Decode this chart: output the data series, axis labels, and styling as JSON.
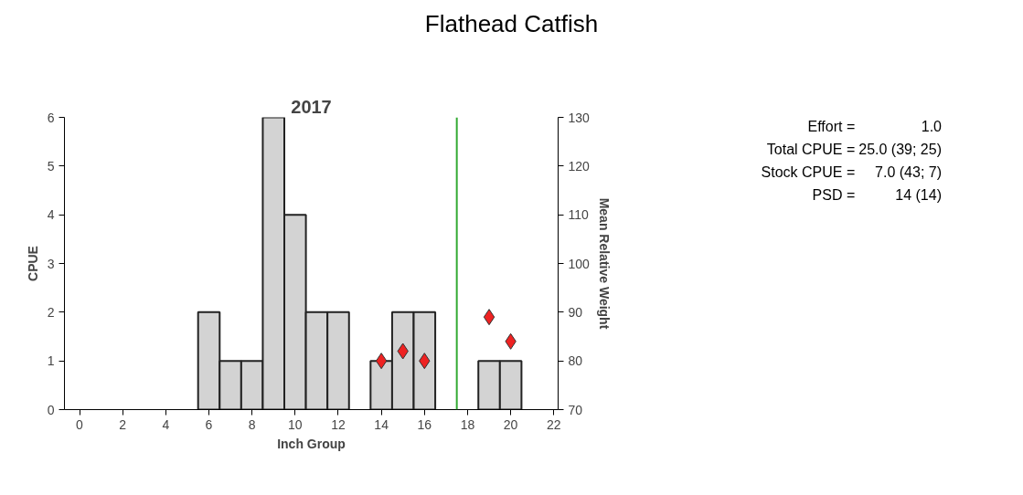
{
  "chart_data": {
    "type": "bar",
    "title": "Flathead Catfish",
    "subtitle": "2017",
    "xlabel": "Inch Group",
    "ylabel": "CPUE",
    "y2label": "Mean Relative Weight",
    "x": [
      6,
      7,
      8,
      9,
      10,
      11,
      12,
      14,
      15,
      16,
      19,
      20
    ],
    "series": [
      {
        "color": "#d3d3d3",
        "values": [
          2,
          1,
          1,
          6,
          4,
          2,
          2,
          1,
          2,
          2,
          1,
          1
        ]
      },
      {
        "type": "scatter",
        "axis": "y2",
        "color": "#ee2222",
        "marker": "diamond",
        "x": [
          14,
          15,
          16,
          19,
          20
        ],
        "values": [
          80,
          82,
          80,
          89,
          84
        ]
      }
    ],
    "xlim": [
      -0.7,
      22.2
    ],
    "xticks": [
      0,
      2,
      4,
      6,
      8,
      10,
      12,
      14,
      16,
      18,
      20,
      22
    ],
    "ylim": [
      0,
      6
    ],
    "yticks": [
      0,
      1,
      2,
      3,
      4,
      5,
      6
    ],
    "y2lim": [
      70,
      130
    ],
    "y2ticks": [
      70,
      80,
      90,
      100,
      110,
      120,
      130
    ],
    "ref_lines": [
      {
        "axis": "x",
        "value": 17.5,
        "color": "#33aa33"
      }
    ],
    "grid": false,
    "annotations": [
      "Effort = 1.0",
      "Total CPUE = 25.0 (39; 25)",
      "Stock CPUE = 7.0 (43; 7)",
      "PSD = 14 (14)"
    ]
  }
}
